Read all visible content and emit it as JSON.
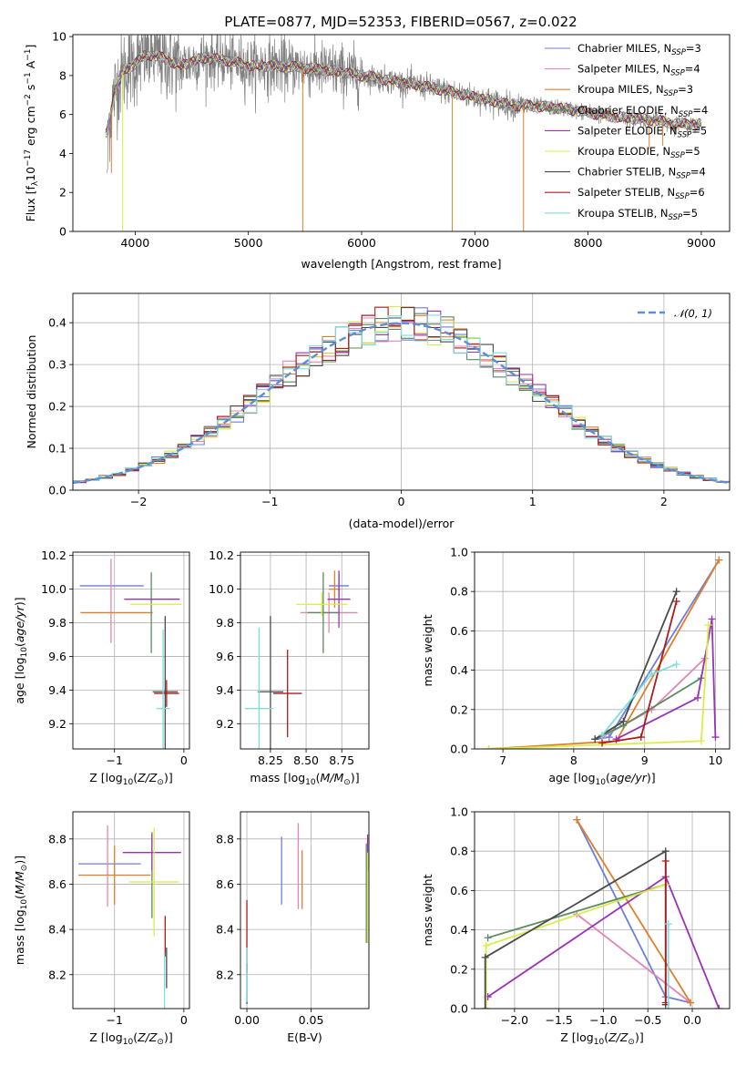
{
  "figure": {
    "title": "PLATE=0877, MJD=52353, FIBERID=0567, z=0.022"
  },
  "series": [
    {
      "name": "Chabrier MILES",
      "nssp": "3",
      "color": "#6c7fdb"
    },
    {
      "name": "Salpeter MILES",
      "nssp": "4",
      "color": "#e784b6"
    },
    {
      "name": "Kroupa MILES",
      "nssp": "3",
      "color": "#e07f2b"
    },
    {
      "name": "Chabrier ELODIE",
      "nssp": "4",
      "color": "#5a8a5f"
    },
    {
      "name": "Salpeter ELODIE",
      "nssp": "5",
      "color": "#9a32b8"
    },
    {
      "name": "Kroupa ELODIE",
      "nssp": "5",
      "color": "#d9ec4a"
    },
    {
      "name": "Chabrier STELIB",
      "nssp": "4",
      "color": "#4a4a4a"
    },
    {
      "name": "Salpeter STELIB",
      "nssp": "6",
      "color": "#b01a1a"
    },
    {
      "name": "Kroupa STELIB",
      "nssp": "5",
      "color": "#7edde0"
    }
  ],
  "chart_data": [
    {
      "id": "spectrum",
      "type": "line",
      "xlabel": "wavelength [Angstrom, rest frame]",
      "ylabel": "Flux [f_λ 10^-17 erg cm^-2 s^-1 A^-1]",
      "xlim": [
        3450,
        9250
      ],
      "ylim": [
        0,
        10.1
      ],
      "xticks": [
        4000,
        5000,
        6000,
        7000,
        8000,
        9000
      ],
      "yticks": [
        0,
        2,
        4,
        6,
        8,
        10
      ],
      "data_color": "#808080",
      "data_range": [
        3750,
        9000
      ],
      "continuum": {
        "x": [
          3750,
          3820,
          3900,
          4000,
          4100,
          4250,
          4400,
          4600,
          4800,
          5000,
          5200,
          5500,
          5800,
          6000,
          6300,
          6600,
          7000,
          7300,
          7600,
          7800,
          8000,
          8200,
          8400,
          8600,
          8800,
          9000
        ],
        "y": [
          5.0,
          7.2,
          8.3,
          8.6,
          9.1,
          8.9,
          8.5,
          8.9,
          8.8,
          8.5,
          8.5,
          8.4,
          8.2,
          8.0,
          7.7,
          7.4,
          6.9,
          6.5,
          6.4,
          6.3,
          6.1,
          5.9,
          5.8,
          5.7,
          5.5,
          5.5
        ]
      },
      "model_dips": [
        {
          "x": 3790,
          "y": 3.0
        },
        {
          "x": 3890,
          "y": 0.0
        },
        {
          "x": 5480,
          "y": 0.0
        },
        {
          "x": 6800,
          "y": 0.0
        },
        {
          "x": 7430,
          "y": 0.0
        },
        {
          "x": 8540,
          "y": 4.2
        },
        {
          "x": 8660,
          "y": 4.4
        }
      ]
    },
    {
      "id": "residual-histogram",
      "type": "step",
      "xlabel": "(data-model)/error",
      "ylabel": "Normed distribution",
      "xlim": [
        -2.5,
        2.5
      ],
      "ylim": [
        0,
        0.47
      ],
      "xticks": [
        -2,
        -1,
        0,
        1,
        2
      ],
      "yticks": [
        0.0,
        0.1,
        0.2,
        0.3,
        0.4
      ],
      "bin_width": 0.1,
      "bin_start": -2.5,
      "reference": {
        "name": "𝒩(0, 1)",
        "color": "#5b8fd6"
      }
    },
    {
      "id": "age-vs-Z",
      "type": "errorbar",
      "xlabel": "Z [log10(Z/Z⊙)]",
      "ylabel": "age  [log10(age/yr)]",
      "xlim": [
        -1.6,
        0.08
      ],
      "ylim": [
        9.05,
        10.22
      ],
      "xticks": [
        -1,
        0
      ],
      "yticks": [
        9.2,
        9.4,
        9.6,
        9.8,
        10.0,
        10.2
      ],
      "points": [
        {
          "x": -1.04,
          "xerr": 0.46,
          "y": 10.02,
          "yerr": 0.0
        },
        {
          "x": -1.05,
          "xerr": 0.0,
          "y": 9.93,
          "yerr": 0.25
        },
        {
          "x": -0.97,
          "xerr": 0.52,
          "y": 9.86,
          "yerr": 0.0
        },
        {
          "x": -0.47,
          "xerr": 0.0,
          "y": 9.86,
          "yerr": 0.24
        },
        {
          "x": -0.46,
          "xerr": 0.4,
          "y": 9.94,
          "yerr": 0.0
        },
        {
          "x": -0.4,
          "xerr": 0.37,
          "y": 9.91,
          "yerr": 0.0
        },
        {
          "x": -0.27,
          "xerr": 0.18,
          "y": 9.39,
          "yerr": 0.45
        },
        {
          "x": -0.25,
          "xerr": 0.18,
          "y": 9.38,
          "yerr": 0.08
        },
        {
          "x": -0.3,
          "xerr": 0.1,
          "y": 9.29,
          "yerr": 0.47
        }
      ]
    },
    {
      "id": "age-vs-mass",
      "type": "errorbar",
      "xlabel": "mass [log10(M/M⊙)]",
      "ylabel": "",
      "xlim": [
        8.04,
        8.94
      ],
      "ylim": [
        9.05,
        10.22
      ],
      "xticks": [
        8.25,
        8.5,
        8.75
      ],
      "yticks": [
        9.2,
        9.4,
        9.6,
        9.8,
        10.0,
        10.2
      ],
      "points": [
        {
          "x": 8.73,
          "xerr": 0.07,
          "y": 10.02,
          "yerr": 0.07
        },
        {
          "x": 8.66,
          "xerr": 0.2,
          "y": 9.86,
          "yerr": 0.12
        },
        {
          "x": 8.7,
          "xerr": 0.04,
          "y": 10.0,
          "yerr": 0.11
        },
        {
          "x": 8.62,
          "xerr": 0.11,
          "y": 9.86,
          "yerr": 0.24
        },
        {
          "x": 8.73,
          "xerr": 0.08,
          "y": 9.94,
          "yerr": 0.17
        },
        {
          "x": 8.61,
          "xerr": 0.18,
          "y": 9.91,
          "yerr": 0.07
        },
        {
          "x": 8.25,
          "xerr": 0.09,
          "y": 9.39,
          "yerr": 0.45
        },
        {
          "x": 8.37,
          "xerr": 0.1,
          "y": 9.38,
          "yerr": 0.26
        },
        {
          "x": 8.17,
          "xerr": 0.1,
          "y": 9.29,
          "yerr": 0.48
        }
      ]
    },
    {
      "id": "massweight-vs-age",
      "type": "line",
      "xlabel": "age  [log10(age/yr)]",
      "ylabel": "mass weight",
      "xlim": [
        6.6,
        10.2
      ],
      "ylim": [
        0,
        1.0
      ],
      "xticks": [
        7,
        8,
        9,
        10
      ],
      "yticks": [
        0.0,
        0.2,
        0.4,
        0.6,
        0.8,
        1.0
      ],
      "series_points": [
        {
          "x": [
            8.3,
            8.5,
            10.05
          ],
          "y": [
            0.05,
            0.06,
            0.96
          ]
        },
        {
          "x": [
            8.4,
            9.1,
            9.85
          ],
          "y": [
            0.06,
            0.2,
            0.46
          ]
        },
        {
          "x": [
            6.8,
            8.6,
            10.05
          ],
          "y": [
            0.0,
            0.04,
            0.96
          ]
        },
        {
          "x": [
            8.3,
            8.7,
            9.8
          ],
          "y": [
            0.05,
            0.12,
            0.36
          ]
        },
        {
          "x": [
            8.6,
            9.75,
            9.95,
            10.0
          ],
          "y": [
            0.05,
            0.26,
            0.66,
            0.06
          ]
        },
        {
          "x": [
            6.8,
            9.8,
            9.9
          ],
          "y": [
            0.0,
            0.04,
            0.63
          ]
        },
        {
          "x": [
            8.3,
            8.7,
            9.45
          ],
          "y": [
            0.05,
            0.14,
            0.8
          ]
        },
        {
          "x": [
            8.4,
            8.95,
            9.45
          ],
          "y": [
            0.03,
            0.06,
            0.75
          ]
        },
        {
          "x": [
            8.4,
            9.1,
            9.45
          ],
          "y": [
            0.07,
            0.38,
            0.43
          ]
        }
      ]
    },
    {
      "id": "mass-vs-Z",
      "type": "errorbar",
      "xlabel": "Z [log10(Z/Z⊙)]",
      "ylabel": "mass [log10(M/M⊙)]",
      "xlim": [
        -1.6,
        0.08
      ],
      "ylim": [
        8.05,
        8.92
      ],
      "xticks": [
        -1,
        0
      ],
      "yticks": [
        8.2,
        8.4,
        8.6,
        8.8
      ],
      "points": [
        {
          "x": -1.07,
          "xerr": 0.45,
          "y": 8.69,
          "yerr": 0.0
        },
        {
          "x": -1.1,
          "xerr": 0.0,
          "y": 8.68,
          "yerr": 0.18
        },
        {
          "x": -1.0,
          "xerr": 0.52,
          "y": 8.64,
          "yerr": 0.13
        },
        {
          "x": -0.46,
          "xerr": 0.0,
          "y": 8.64,
          "yerr": 0.19
        },
        {
          "x": -0.46,
          "xerr": 0.42,
          "y": 8.74,
          "yerr": 0.08
        },
        {
          "x": -0.43,
          "xerr": 0.36,
          "y": 8.61,
          "yerr": 0.24
        },
        {
          "x": -0.25,
          "xerr": 0.0,
          "y": 8.23,
          "yerr": 0.09
        },
        {
          "x": -0.27,
          "xerr": 0.0,
          "y": 8.37,
          "yerr": 0.09
        },
        {
          "x": -0.28,
          "xerr": 0.0,
          "y": 8.17,
          "yerr": 0.13
        }
      ]
    },
    {
      "id": "mass-vs-EBV",
      "type": "errorbar",
      "xlabel": "E(B-V)",
      "ylabel": "",
      "xlim": [
        -0.005,
        0.095
      ],
      "ylim": [
        8.05,
        8.92
      ],
      "xticks": [
        0.0,
        0.05
      ],
      "yticks": [
        8.2,
        8.4,
        8.6,
        8.8
      ],
      "points": [
        {
          "x": 0.027,
          "xerr": 0.0,
          "y": 8.66,
          "yerr": 0.15
        },
        {
          "x": 0.04,
          "xerr": 0.0,
          "y": 8.68,
          "yerr": 0.19
        },
        {
          "x": 0.043,
          "xerr": 0.0,
          "y": 8.62,
          "yerr": 0.13
        },
        {
          "x": 0.093,
          "xerr": 0.0,
          "y": 8.56,
          "yerr": 0.22
        },
        {
          "x": 0.094,
          "xerr": 0.0,
          "y": 8.74,
          "yerr": 0.08
        },
        {
          "x": 0.094,
          "xerr": 0.0,
          "y": 8.54,
          "yerr": 0.2
        },
        {
          "x": 0.0,
          "xerr": 0.0,
          "y": 8.16,
          "yerr": 0.09
        },
        {
          "x": 0.0,
          "xerr": 0.0,
          "y": 8.37,
          "yerr": 0.16
        },
        {
          "x": 0.0,
          "xerr": 0.0,
          "y": 8.2,
          "yerr": 0.12
        }
      ]
    },
    {
      "id": "massweight-vs-Z",
      "type": "line",
      "xlabel": "Z [log10(Z/Z⊙)]",
      "ylabel": "mass weight",
      "xlim": [
        -2.45,
        0.42
      ],
      "ylim": [
        0,
        1.0
      ],
      "xticks": [
        -2.0,
        -1.5,
        -1.0,
        -0.5,
        0.0
      ],
      "yticks": [
        0.0,
        0.2,
        0.4,
        0.6,
        0.8,
        1.0
      ],
      "series_points": [
        {
          "x": [
            -1.3,
            -0.3,
            -0.02
          ],
          "y": [
            0.96,
            0.06,
            0.03
          ]
        },
        {
          "x": [
            -1.3,
            -0.02
          ],
          "y": [
            0.48,
            0.03
          ]
        },
        {
          "x": [
            -1.3,
            -0.02
          ],
          "y": [
            0.96,
            0.03
          ]
        },
        {
          "x": [
            -2.3,
            -0.3
          ],
          "y": [
            0.36,
            0.63
          ]
        },
        {
          "x": [
            -2.3,
            -0.3,
            0.3
          ],
          "y": [
            0.06,
            0.67,
            0.0
          ]
        },
        {
          "x": [
            -2.32,
            -2.32,
            -0.3
          ],
          "y": [
            0.0,
            0.32,
            0.63
          ]
        },
        {
          "x": [
            -2.33,
            -2.33,
            -0.3,
            -0.3
          ],
          "y": [
            0.0,
            0.26,
            0.8,
            0.02
          ]
        },
        {
          "x": [
            -0.3,
            -0.3
          ],
          "y": [
            0.75,
            0.03
          ]
        },
        {
          "x": [
            -0.27,
            -0.27
          ],
          "y": [
            0.43,
            0.0
          ]
        }
      ]
    }
  ]
}
